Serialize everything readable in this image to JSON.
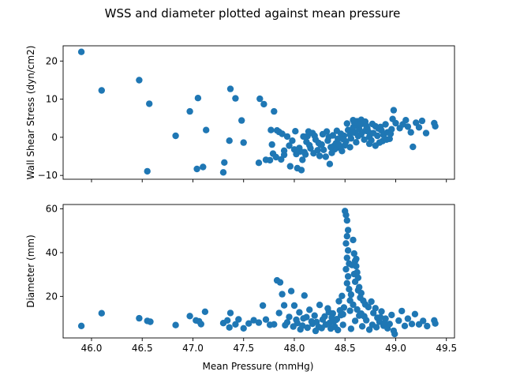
{
  "figure": {
    "suptitle": "WSS and diameter plotted against mean pressure",
    "xlabel": "Mean Pressure (mmHg)",
    "marker_color": "#1f77b4"
  },
  "chart_data": [
    {
      "type": "scatter",
      "title": "",
      "xlabel": "",
      "ylabel": "Wall Shear Stress (dyn/cm2)",
      "xlim": [
        45.72,
        49.58
      ],
      "ylim": [
        -11,
        24
      ],
      "xticks": [
        46.0,
        46.5,
        47.0,
        47.5,
        48.0,
        48.5,
        49.0,
        49.5
      ],
      "xtick_labels_visible": false,
      "yticks": [
        -10,
        0,
        10,
        20
      ],
      "ytick_labels": [
        "−10",
        "0",
        "10",
        "20"
      ],
      "grid": false,
      "points": [
        [
          45.9,
          22.4
        ],
        [
          46.1,
          12.3
        ],
        [
          46.47,
          15.0
        ],
        [
          46.57,
          8.8
        ],
        [
          46.55,
          -8.9
        ],
        [
          46.83,
          0.4
        ],
        [
          46.97,
          6.8
        ],
        [
          47.05,
          10.3
        ],
        [
          47.04,
          -8.3
        ],
        [
          47.1,
          -7.8
        ],
        [
          47.13,
          1.9
        ],
        [
          47.3,
          -9.2
        ],
        [
          47.37,
          12.7
        ],
        [
          47.42,
          10.2
        ],
        [
          47.48,
          4.4
        ],
        [
          47.36,
          -0.9
        ],
        [
          47.31,
          -6.6
        ],
        [
          47.5,
          -1.4
        ],
        [
          47.66,
          10.1
        ],
        [
          47.7,
          8.7
        ],
        [
          47.65,
          -6.7
        ],
        [
          47.72,
          -5.9
        ],
        [
          47.8,
          6.8
        ],
        [
          47.83,
          1.8
        ],
        [
          47.77,
          1.9
        ],
        [
          47.85,
          1.4
        ],
        [
          47.88,
          0.9
        ],
        [
          47.78,
          -1.9
        ],
        [
          47.79,
          -4.3
        ],
        [
          47.76,
          -6.0
        ],
        [
          47.82,
          -5.2
        ],
        [
          47.87,
          -5.8
        ],
        [
          47.9,
          -4.6
        ],
        [
          47.9,
          -3.5
        ],
        [
          47.93,
          0.2
        ],
        [
          47.96,
          -7.6
        ],
        [
          48.03,
          -8.1
        ],
        [
          48.07,
          -8.6
        ],
        [
          48.0,
          -3.2
        ],
        [
          48.02,
          -4.4
        ],
        [
          48.05,
          -2.8
        ],
        [
          48.08,
          -5.9
        ],
        [
          48.1,
          -3.9
        ],
        [
          48.12,
          -1.2
        ],
        [
          48.13,
          0.3
        ],
        [
          48.15,
          -2.1
        ],
        [
          48.18,
          1.1
        ],
        [
          48.21,
          -0.6
        ],
        [
          48.23,
          -3.4
        ],
        [
          48.25,
          -4.9
        ],
        [
          48.27,
          -1.9
        ],
        [
          48.29,
          -3.3
        ],
        [
          48.32,
          1.5
        ],
        [
          48.34,
          0.1
        ],
        [
          48.35,
          -7.0
        ],
        [
          48.37,
          -4.1
        ],
        [
          48.39,
          -2.3
        ],
        [
          48.41,
          -1.6
        ],
        [
          48.43,
          -0.4
        ],
        [
          48.45,
          -2.8
        ],
        [
          48.47,
          -3.6
        ],
        [
          48.49,
          0.4
        ],
        [
          48.51,
          -1.1
        ],
        [
          48.53,
          1.9
        ],
        [
          48.55,
          0.7
        ],
        [
          48.56,
          -0.3
        ],
        [
          48.58,
          2.6
        ],
        [
          48.6,
          1.2
        ],
        [
          48.62,
          3.1
        ],
        [
          48.64,
          2.1
        ],
        [
          48.66,
          0.8
        ],
        [
          48.68,
          3.8
        ],
        [
          48.7,
          1.7
        ],
        [
          48.72,
          2.4
        ],
        [
          48.74,
          0.1
        ],
        [
          48.76,
          -0.8
        ],
        [
          48.78,
          1.1
        ],
        [
          48.8,
          2.9
        ],
        [
          48.82,
          0.4
        ],
        [
          48.84,
          -1.4
        ],
        [
          48.86,
          1.8
        ],
        [
          48.88,
          0.6
        ],
        [
          48.9,
          3.4
        ],
        [
          48.92,
          1.3
        ],
        [
          48.94,
          -0.4
        ],
        [
          48.96,
          2.1
        ],
        [
          48.98,
          7.1
        ],
        [
          48.97,
          4.8
        ],
        [
          49.0,
          3.7
        ],
        [
          49.04,
          2.4
        ],
        [
          49.07,
          3.4
        ],
        [
          49.1,
          4.5
        ],
        [
          49.12,
          2.8
        ],
        [
          49.15,
          1.3
        ],
        [
          49.17,
          -2.5
        ],
        [
          49.2,
          3.8
        ],
        [
          49.23,
          2.6
        ],
        [
          49.26,
          4.3
        ],
        [
          49.3,
          1.1
        ],
        [
          49.38,
          3.7
        ],
        [
          49.39,
          2.9
        ],
        [
          48.58,
          4.5
        ],
        [
          48.62,
          4.2
        ],
        [
          48.66,
          4.6
        ],
        [
          48.7,
          4.1
        ],
        [
          48.61,
          -1.3
        ],
        [
          48.69,
          -0.6
        ],
        [
          48.74,
          -1.7
        ],
        [
          48.8,
          -2.2
        ],
        [
          48.87,
          -1.0
        ],
        [
          48.55,
          -2.6
        ],
        [
          48.46,
          0.9
        ],
        [
          48.42,
          1.7
        ],
        [
          48.38,
          0.5
        ],
        [
          48.33,
          -0.9
        ],
        [
          48.28,
          0.8
        ],
        [
          48.24,
          -1.5
        ],
        [
          48.2,
          0.4
        ],
        [
          48.16,
          -2.9
        ],
        [
          48.11,
          -4.5
        ],
        [
          48.06,
          -3.7
        ],
        [
          48.19,
          -4.2
        ],
        [
          48.31,
          -5.1
        ],
        [
          48.4,
          -3.1
        ],
        [
          48.5,
          -2.1
        ],
        [
          48.57,
          1.3
        ],
        [
          48.63,
          0.3
        ],
        [
          48.73,
          1.5
        ],
        [
          48.83,
          2.3
        ],
        [
          48.91,
          -0.6
        ],
        [
          48.95,
          0.9
        ],
        [
          48.52,
          3.6
        ],
        [
          48.59,
          3.9
        ],
        [
          48.65,
          3.3
        ],
        [
          48.71,
          3.0
        ],
        [
          48.77,
          3.5
        ],
        [
          48.85,
          2.7
        ],
        [
          48.48,
          -0.5
        ],
        [
          48.44,
          -1.9
        ],
        [
          48.36,
          -2.6
        ],
        [
          48.26,
          -2.0
        ],
        [
          48.14,
          1.5
        ],
        [
          48.09,
          0.2
        ],
        [
          48.01,
          1.6
        ],
        [
          47.98,
          -0.9
        ],
        [
          47.95,
          -2.2
        ]
      ]
    },
    {
      "type": "scatter",
      "title": "",
      "xlabel": "Mean Pressure (mmHg)",
      "ylabel": "Diameter (mm)",
      "xlim": [
        45.72,
        49.58
      ],
      "ylim": [
        1,
        62
      ],
      "xticks": [
        46.0,
        46.5,
        47.0,
        47.5,
        48.0,
        48.5,
        49.0,
        49.5
      ],
      "xtick_labels": [
        "46.0",
        "46.5",
        "47.0",
        "47.5",
        "48.0",
        "48.5",
        "49.0",
        "49.5"
      ],
      "yticks": [
        20,
        40,
        60
      ],
      "ytick_labels": [
        "20",
        "40",
        "60"
      ],
      "grid": false,
      "points": [
        [
          45.9,
          6.5
        ],
        [
          46.1,
          12.3
        ],
        [
          46.47,
          10.0
        ],
        [
          46.55,
          8.8
        ],
        [
          46.58,
          8.4
        ],
        [
          46.83,
          6.9
        ],
        [
          46.97,
          11.0
        ],
        [
          47.03,
          9.0
        ],
        [
          47.08,
          7.3
        ],
        [
          47.12,
          13.0
        ],
        [
          47.06,
          8.6
        ],
        [
          47.3,
          7.8
        ],
        [
          47.34,
          9.0
        ],
        [
          47.37,
          12.4
        ],
        [
          47.36,
          5.8
        ],
        [
          47.42,
          7.2
        ],
        [
          47.45,
          9.5
        ],
        [
          47.5,
          5.4
        ],
        [
          47.55,
          7.6
        ],
        [
          47.6,
          9.1
        ],
        [
          47.65,
          8.0
        ],
        [
          47.69,
          15.8
        ],
        [
          47.72,
          9.4
        ],
        [
          47.76,
          7.0
        ],
        [
          47.8,
          7.2
        ],
        [
          47.83,
          27.3
        ],
        [
          47.86,
          26.4
        ],
        [
          47.88,
          21.0
        ],
        [
          47.85,
          12.4
        ],
        [
          47.9,
          15.9
        ],
        [
          47.93,
          8.1
        ],
        [
          47.97,
          22.4
        ],
        [
          48.0,
          15.8
        ],
        [
          48.02,
          9.3
        ],
        [
          48.05,
          12.7
        ],
        [
          48.08,
          6.6
        ],
        [
          48.1,
          20.4
        ],
        [
          48.12,
          10.5
        ],
        [
          48.15,
          13.9
        ],
        [
          48.18,
          7.5
        ],
        [
          48.2,
          11.2
        ],
        [
          48.22,
          8.3
        ],
        [
          48.25,
          16.1
        ],
        [
          48.27,
          5.5
        ],
        [
          48.3,
          10.8
        ],
        [
          48.33,
          14.5
        ],
        [
          48.35,
          7.9
        ],
        [
          48.38,
          12.2
        ],
        [
          48.4,
          6.1
        ],
        [
          48.42,
          9.6
        ],
        [
          48.44,
          17.8
        ],
        [
          48.46,
          11.4
        ],
        [
          48.47,
          20.2
        ],
        [
          48.48,
          7.0
        ],
        [
          48.49,
          14.9
        ],
        [
          48.5,
          59.0
        ],
        [
          48.51,
          57.2
        ],
        [
          48.52,
          54.7
        ],
        [
          48.53,
          50.3
        ],
        [
          48.52,
          47.5
        ],
        [
          48.51,
          44.2
        ],
        [
          48.53,
          41.0
        ],
        [
          48.52,
          37.6
        ],
        [
          48.54,
          35.0
        ],
        [
          48.51,
          32.4
        ],
        [
          48.53,
          29.1
        ],
        [
          48.52,
          26.0
        ],
        [
          48.54,
          23.3
        ],
        [
          48.56,
          20.8
        ],
        [
          48.55,
          18.1
        ],
        [
          48.58,
          45.8
        ],
        [
          48.59,
          39.6
        ],
        [
          48.6,
          36.2
        ],
        [
          48.61,
          33.8
        ],
        [
          48.62,
          31.0
        ],
        [
          48.63,
          28.5
        ],
        [
          48.6,
          26.7
        ],
        [
          48.64,
          24.2
        ],
        [
          48.66,
          21.5
        ],
        [
          48.65,
          19.4
        ],
        [
          48.57,
          34.3
        ],
        [
          48.61,
          37.1
        ],
        [
          48.59,
          30.2
        ],
        [
          48.63,
          22.8
        ],
        [
          48.68,
          18.0
        ],
        [
          48.7,
          16.3
        ],
        [
          48.73,
          15.1
        ],
        [
          48.76,
          17.6
        ],
        [
          48.78,
          12.4
        ],
        [
          48.8,
          14.6
        ],
        [
          48.82,
          10.2
        ],
        [
          48.84,
          8.4
        ],
        [
          48.86,
          13.1
        ],
        [
          48.88,
          6.6
        ],
        [
          48.9,
          9.8
        ],
        [
          48.92,
          5.4
        ],
        [
          48.94,
          7.4
        ],
        [
          48.96,
          11.5
        ],
        [
          48.98,
          4.3
        ],
        [
          48.99,
          2.8
        ],
        [
          49.03,
          8.9
        ],
        [
          49.06,
          13.3
        ],
        [
          49.09,
          6.5
        ],
        [
          49.12,
          9.8
        ],
        [
          49.16,
          7.4
        ],
        [
          49.19,
          11.9
        ],
        [
          49.23,
          7.2
        ],
        [
          49.27,
          8.8
        ],
        [
          49.31,
          6.4
        ],
        [
          49.38,
          9.0
        ],
        [
          49.39,
          7.6
        ],
        [
          48.56,
          5.2
        ],
        [
          48.6,
          8.8
        ],
        [
          48.64,
          11.2
        ],
        [
          48.67,
          6.3
        ],
        [
          48.71,
          9.1
        ],
        [
          48.74,
          4.8
        ],
        [
          48.77,
          7.0
        ],
        [
          48.81,
          5.9
        ],
        [
          48.85,
          10.4
        ],
        [
          48.89,
          7.8
        ],
        [
          48.43,
          4.6
        ],
        [
          48.39,
          8.6
        ],
        [
          48.36,
          5.3
        ],
        [
          48.31,
          7.1
        ],
        [
          48.28,
          9.4
        ],
        [
          48.24,
          6.0
        ],
        [
          48.21,
          4.2
        ],
        [
          48.17,
          8.5
        ],
        [
          48.13,
          5.7
        ],
        [
          48.09,
          9.9
        ],
        [
          48.06,
          4.9
        ],
        [
          48.03,
          7.8
        ],
        [
          47.99,
          6.2
        ],
        [
          47.95,
          10.6
        ],
        [
          47.91,
          6.8
        ],
        [
          48.55,
          13.4
        ],
        [
          48.58,
          16.2
        ],
        [
          48.62,
          14.0
        ],
        [
          48.66,
          12.1
        ],
        [
          48.69,
          10.9
        ],
        [
          48.48,
          11.8
        ],
        [
          48.45,
          13.6
        ],
        [
          48.41,
          9.2
        ],
        [
          48.37,
          10.3
        ],
        [
          48.34,
          12.8
        ]
      ]
    }
  ]
}
